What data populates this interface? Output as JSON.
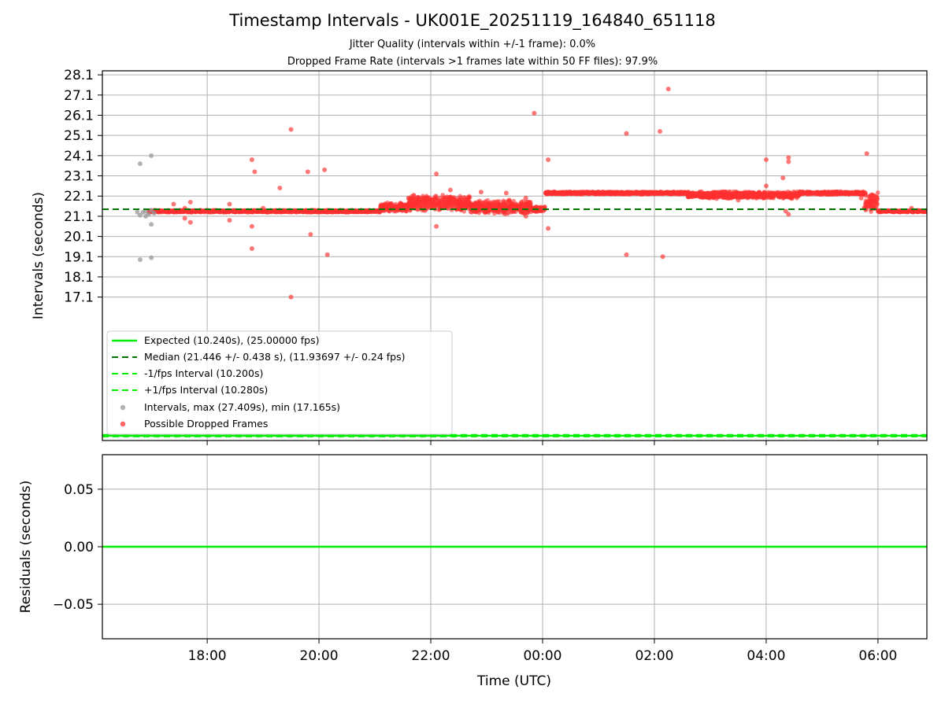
{
  "title": "Timestamp Intervals - UK001E_20251119_164840_651118",
  "subtitle_1": "Jitter Quality (intervals within +/-1 frame): 0.0%",
  "subtitle_2": "Dropped Frame Rate (intervals >1 frames late within 50 FF files): 97.9%",
  "colors": {
    "expected": "#00ee00",
    "median": "#007700",
    "interval_dots": "#999999",
    "dropped_dots": "#ff3030",
    "grid": "#b0b0b0"
  },
  "chart_data": [
    {
      "type": "scatter",
      "name": "intervals",
      "ylabel": "Intervals (seconds)",
      "xlim_hours": [
        16.125,
        30.875
      ],
      "ylim": [
        10.0,
        28.3
      ],
      "y_ticks": [
        "17.1",
        "18.1",
        "19.1",
        "20.1",
        "21.1",
        "22.1",
        "23.1",
        "24.1",
        "25.1",
        "26.1",
        "27.1",
        "28.1"
      ],
      "x_ticks": [
        "18:00",
        "20:00",
        "22:00",
        "00:00",
        "02:00",
        "04:00",
        "06:00"
      ],
      "x_tick_hours": [
        18,
        20,
        22,
        24,
        26,
        28,
        30
      ],
      "grid": true,
      "legend_position": "lower-left",
      "expected_value": 10.24,
      "minus_1fps_value": 10.2,
      "plus_1fps_value": 10.28,
      "median_value": 21.446,
      "legend": [
        {
          "label": "Expected (10.240s), (25.00000 fps)",
          "style": "line-solid",
          "color": "#00ee00"
        },
        {
          "label": "Median (21.446 +/- 0.438 s), (11.93697 +/- 0.24 fps)",
          "style": "line-dashed",
          "color": "#007700"
        },
        {
          "label": "-1/fps Interval (10.200s)",
          "style": "line-dashed",
          "color": "#00ee00"
        },
        {
          "label": "+1/fps Interval (10.280s)",
          "style": "line-dashed",
          "color": "#00ee00"
        },
        {
          "label": "Intervals, max (27.409s), min (17.165s)",
          "style": "dot",
          "color": "#999999"
        },
        {
          "label": "Possible Dropped Frames",
          "style": "dot",
          "color": "#ff3030"
        }
      ],
      "normal_intervals": [
        [
          16.8,
          23.7
        ],
        [
          17.0,
          24.1
        ],
        [
          16.8,
          18.95
        ],
        [
          17.0,
          19.05
        ],
        [
          17.0,
          20.7
        ],
        [
          16.8,
          21.15
        ],
        [
          16.85,
          21.3
        ],
        [
          16.9,
          21.35
        ],
        [
          16.95,
          21.2
        ],
        [
          17.0,
          21.4
        ],
        [
          17.05,
          21.25
        ],
        [
          16.75,
          21.3
        ],
        [
          16.9,
          21.1
        ]
      ],
      "dropped_outliers": [
        [
          17.4,
          21.7
        ],
        [
          17.6,
          21.5
        ],
        [
          17.7,
          21.8
        ],
        [
          17.7,
          20.8
        ],
        [
          17.6,
          21.0
        ],
        [
          18.4,
          21.7
        ],
        [
          18.4,
          20.9
        ],
        [
          18.8,
          23.9
        ],
        [
          18.85,
          23.3
        ],
        [
          18.8,
          20.6
        ],
        [
          18.8,
          19.5
        ],
        [
          19.0,
          21.5
        ],
        [
          19.3,
          22.5
        ],
        [
          19.5,
          25.4
        ],
        [
          19.5,
          17.1
        ],
        [
          19.8,
          23.3
        ],
        [
          19.85,
          20.2
        ],
        [
          20.1,
          23.4
        ],
        [
          20.15,
          19.2
        ],
        [
          22.1,
          23.2
        ],
        [
          22.1,
          20.6
        ],
        [
          22.35,
          22.4
        ],
        [
          22.9,
          22.3
        ],
        [
          23.35,
          22.25
        ],
        [
          23.4,
          21.9
        ],
        [
          23.7,
          22.0
        ],
        [
          23.7,
          21.1
        ],
        [
          23.85,
          26.2
        ],
        [
          24.1,
          23.9
        ],
        [
          24.1,
          20.5
        ],
        [
          25.5,
          25.2
        ],
        [
          25.5,
          19.2
        ],
        [
          26.1,
          25.3
        ],
        [
          26.15,
          19.1
        ],
        [
          26.25,
          27.4
        ],
        [
          27.5,
          21.9
        ],
        [
          28.0,
          23.9
        ],
        [
          28.0,
          22.6
        ],
        [
          28.3,
          23.0
        ],
        [
          28.35,
          21.35
        ],
        [
          28.4,
          24.0
        ],
        [
          28.4,
          23.8
        ],
        [
          28.4,
          21.2
        ],
        [
          29.7,
          22.0
        ],
        [
          29.8,
          24.2
        ],
        [
          29.9,
          21.6
        ],
        [
          30.6,
          21.5
        ]
      ],
      "dropped_bands": [
        {
          "x_start": 16.95,
          "x_end": 21.1,
          "y_center": 21.35,
          "spread": 0.06
        },
        {
          "x_start": 21.1,
          "x_end": 21.6,
          "y_center": 21.55,
          "spread": 0.25
        },
        {
          "x_start": 21.6,
          "x_end": 22.7,
          "y_center": 21.75,
          "spread": 0.45
        },
        {
          "x_start": 22.7,
          "x_end": 23.8,
          "y_center": 21.55,
          "spread": 0.35
        },
        {
          "x_start": 23.8,
          "x_end": 24.05,
          "y_center": 21.45,
          "spread": 0.15
        },
        {
          "x_start": 24.05,
          "x_end": 26.6,
          "y_center": 22.25,
          "spread": 0.07
        },
        {
          "x_start": 26.6,
          "x_end": 28.6,
          "y_center": 22.15,
          "spread": 0.2
        },
        {
          "x_start": 28.6,
          "x_end": 29.75,
          "y_center": 22.25,
          "spread": 0.08
        },
        {
          "x_start": 29.75,
          "x_end": 30.0,
          "y_center": 21.8,
          "spread": 0.55
        },
        {
          "x_start": 30.0,
          "x_end": 30.875,
          "y_center": 21.35,
          "spread": 0.05
        }
      ]
    },
    {
      "type": "line",
      "name": "residuals",
      "ylabel": "Residuals (seconds)",
      "xlabel": "Time (UTC)",
      "ylim": [
        -0.08,
        0.08
      ],
      "y_ticks": [
        "0.05",
        "0.00",
        "−0.05"
      ],
      "y_tick_values": [
        0.05,
        0.0,
        -0.05
      ],
      "x_ticks": [
        "18:00",
        "20:00",
        "22:00",
        "00:00",
        "02:00",
        "04:00",
        "06:00"
      ],
      "residual_value": 0.0,
      "grid": true
    }
  ]
}
